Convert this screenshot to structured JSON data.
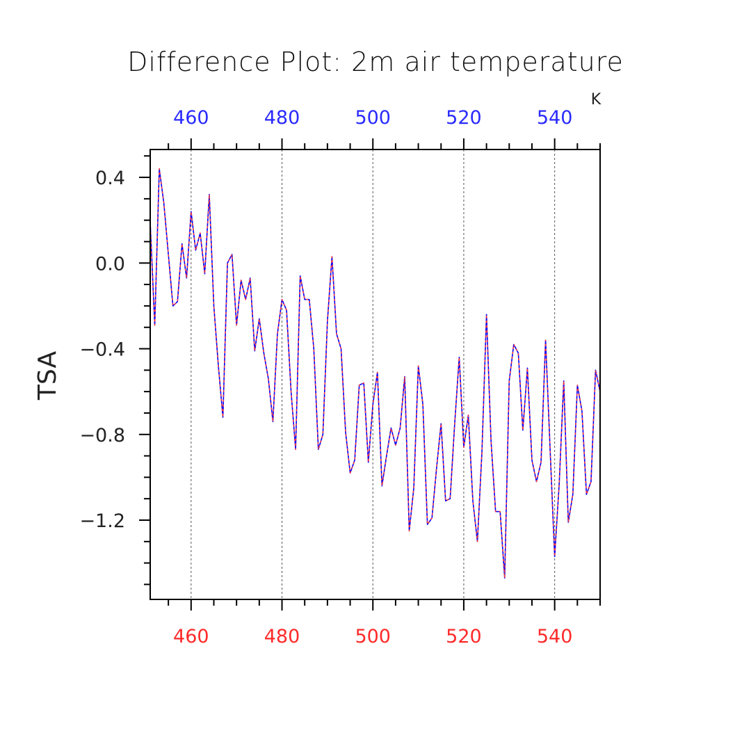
{
  "chart_data": {
    "type": "line",
    "title": "Difference Plot: 2m air temperature",
    "ylabel": "TSA",
    "units": "K",
    "xlim": [
      451,
      550
    ],
    "ylim": [
      -1.57,
      0.53
    ],
    "grid": "vertical dashed at major x ticks",
    "top_axis_color": "#2a2aff",
    "bottom_axis_color": "#ff2a2a",
    "x_ticks": [
      460,
      480,
      500,
      520,
      540
    ],
    "x_tick_labels": [
      "460",
      "480",
      "500",
      "520",
      "540"
    ],
    "y_ticks": [
      0.4,
      0.0,
      -0.4,
      -0.8,
      -1.2
    ],
    "y_tick_labels": [
      "0.4",
      "0.0",
      "−0.4",
      "−0.8",
      "−1.2"
    ],
    "series": [
      {
        "color": "#0000ff",
        "style": "solid",
        "x": [
          451,
          452,
          453,
          454,
          455,
          456,
          457,
          458,
          459,
          460,
          461,
          462,
          463,
          464,
          465,
          466,
          467,
          468,
          469,
          470,
          471,
          472,
          473,
          474,
          475,
          476,
          477,
          478,
          479,
          480,
          481,
          482,
          483,
          484,
          485,
          486,
          487,
          488,
          489,
          490,
          491,
          492,
          493,
          494,
          495,
          496,
          497,
          498,
          499,
          500,
          501,
          502,
          503,
          504,
          505,
          506,
          507,
          508,
          509,
          510,
          511,
          512,
          513,
          514,
          515,
          516,
          517,
          518,
          519,
          520,
          521,
          522,
          523,
          524,
          525,
          526,
          527,
          528,
          529,
          530,
          531,
          532,
          533,
          534,
          535,
          536,
          537,
          538,
          539,
          540,
          541,
          542,
          543,
          544,
          545,
          546,
          547,
          548,
          549,
          550
        ],
        "values": [
          0.19,
          -0.29,
          0.44,
          0.28,
          0.04,
          -0.2,
          -0.18,
          0.09,
          -0.07,
          0.24,
          0.06,
          0.14,
          -0.05,
          0.32,
          -0.2,
          -0.48,
          -0.72,
          0.0,
          0.04,
          -0.29,
          -0.08,
          -0.17,
          -0.07,
          -0.41,
          -0.26,
          -0.42,
          -0.54,
          -0.74,
          -0.33,
          -0.17,
          -0.22,
          -0.6,
          -0.87,
          -0.06,
          -0.17,
          -0.17,
          -0.4,
          -0.87,
          -0.8,
          -0.27,
          0.03,
          -0.33,
          -0.4,
          -0.79,
          -0.98,
          -0.92,
          -0.57,
          -0.56,
          -0.93,
          -0.66,
          -0.51,
          -1.04,
          -0.9,
          -0.77,
          -0.85,
          -0.77,
          -0.53,
          -1.25,
          -1.05,
          -0.48,
          -0.66,
          -1.22,
          -1.19,
          -0.96,
          -0.75,
          -1.11,
          -1.1,
          -0.75,
          -0.44,
          -0.86,
          -0.71,
          -1.11,
          -1.3,
          -0.88,
          -0.24,
          -0.83,
          -1.16,
          -1.16,
          -1.47,
          -0.55,
          -0.38,
          -0.42,
          -0.78,
          -0.49,
          -0.92,
          -1.02,
          -0.93,
          -0.36,
          -0.87,
          -1.37,
          -1.03,
          -0.55,
          -1.21,
          -1.08,
          -0.57,
          -0.69,
          -1.08,
          -1.02,
          -0.5,
          -0.6
        ]
      },
      {
        "color": "#ff3b3b",
        "style": "dashed",
        "x": [
          451,
          452,
          453,
          454,
          455,
          456,
          457,
          458,
          459,
          460,
          461,
          462,
          463,
          464,
          465,
          466,
          467,
          468,
          469,
          470,
          471,
          472,
          473,
          474,
          475,
          476,
          477,
          478,
          479,
          480,
          481,
          482,
          483,
          484,
          485,
          486,
          487,
          488,
          489,
          490,
          491,
          492,
          493,
          494,
          495,
          496,
          497,
          498,
          499,
          500,
          501,
          502,
          503,
          504,
          505,
          506,
          507,
          508,
          509,
          510,
          511,
          512,
          513,
          514,
          515,
          516,
          517,
          518,
          519,
          520,
          521,
          522,
          523,
          524,
          525,
          526,
          527,
          528,
          529,
          530,
          531,
          532,
          533,
          534,
          535,
          536,
          537,
          538,
          539,
          540,
          541,
          542,
          543,
          544,
          545,
          546,
          547,
          548,
          549,
          550
        ],
        "values": [
          0.19,
          -0.29,
          0.44,
          0.28,
          0.04,
          -0.2,
          -0.18,
          0.09,
          -0.07,
          0.24,
          0.06,
          0.14,
          -0.05,
          0.32,
          -0.2,
          -0.48,
          -0.72,
          0.0,
          0.04,
          -0.29,
          -0.08,
          -0.17,
          -0.07,
          -0.41,
          -0.26,
          -0.42,
          -0.54,
          -0.74,
          -0.33,
          -0.17,
          -0.22,
          -0.6,
          -0.87,
          -0.06,
          -0.17,
          -0.17,
          -0.4,
          -0.87,
          -0.8,
          -0.27,
          0.03,
          -0.33,
          -0.4,
          -0.79,
          -0.98,
          -0.92,
          -0.57,
          -0.56,
          -0.93,
          -0.66,
          -0.51,
          -1.04,
          -0.9,
          -0.77,
          -0.85,
          -0.77,
          -0.53,
          -1.25,
          -1.05,
          -0.48,
          -0.66,
          -1.22,
          -1.19,
          -0.96,
          -0.75,
          -1.11,
          -1.1,
          -0.75,
          -0.44,
          -0.86,
          -0.71,
          -1.11,
          -1.3,
          -0.88,
          -0.24,
          -0.83,
          -1.16,
          -1.16,
          -1.47,
          -0.55,
          -0.38,
          -0.42,
          -0.78,
          -0.49,
          -0.92,
          -1.02,
          -0.93,
          -0.36,
          -0.87,
          -1.37,
          -1.03,
          -0.55,
          -1.21,
          -1.08,
          -0.57,
          -0.69,
          -1.08,
          -1.02,
          -0.5,
          -0.6
        ]
      }
    ]
  }
}
